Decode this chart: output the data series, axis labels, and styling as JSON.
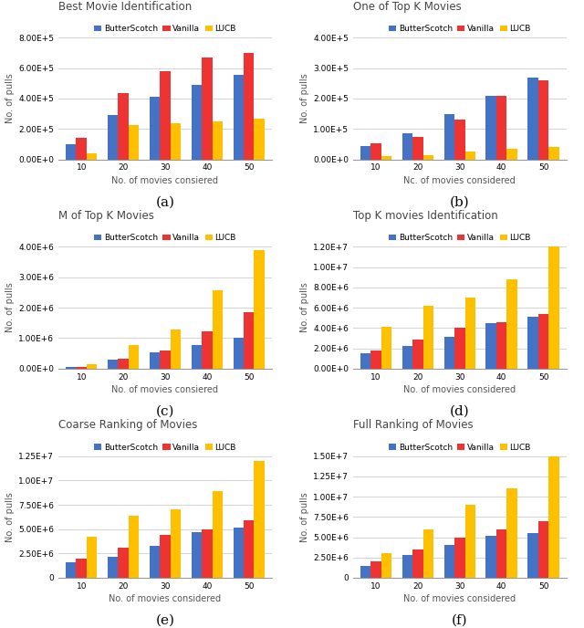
{
  "subplots": [
    {
      "title": "Best Movie Identification",
      "xlabel": "No. of movies consiered",
      "ylabel": "No. of pulls",
      "label": "(a)",
      "categories": [
        10,
        20,
        30,
        40,
        50
      ],
      "butterscotch": [
        100000,
        290000,
        410000,
        490000,
        555000
      ],
      "vanilla": [
        140000,
        435000,
        580000,
        670000,
        700000
      ],
      "lucb": [
        40000,
        225000,
        235000,
        250000,
        265000
      ],
      "ylim": [
        0,
        800000
      ],
      "yticks": [
        0,
        200000,
        400000,
        600000,
        800000
      ],
      "ytick_labels": [
        "0.00E+0",
        "2.00E+5",
        "4.00E+5",
        "6.00E+5",
        "8.00E+5"
      ]
    },
    {
      "title": "One of Top K Movies",
      "xlabel": "Nc. of movies considered",
      "ylabel": "No. of pulls",
      "label": "(b)",
      "categories": [
        10,
        20,
        30,
        40,
        50
      ],
      "butterscotch": [
        45000,
        85000,
        148000,
        210000,
        270000
      ],
      "vanilla": [
        52000,
        75000,
        130000,
        210000,
        260000
      ],
      "lucb": [
        10000,
        15000,
        25000,
        35000,
        42000
      ],
      "ylim": [
        0,
        400000
      ],
      "yticks": [
        0,
        100000,
        200000,
        300000,
        400000
      ],
      "ytick_labels": [
        "0.00E+0",
        "1.00E+5",
        "2.00E+5",
        "3.00E+5",
        "4.00E+5"
      ]
    },
    {
      "title": "M of Top K Movies",
      "xlabel": "No. of movies consiered",
      "ylabel": "No. of pulls",
      "label": "(c)",
      "categories": [
        10,
        20,
        30,
        40,
        50
      ],
      "butterscotch": [
        55000,
        285000,
        520000,
        770000,
        1020000
      ],
      "vanilla": [
        65000,
        330000,
        590000,
        1230000,
        1840000
      ],
      "lucb": [
        145000,
        770000,
        1280000,
        2580000,
        3900000
      ],
      "ylim": [
        0,
        4000000
      ],
      "yticks": [
        0,
        1000000,
        2000000,
        3000000,
        4000000
      ],
      "ytick_labels": [
        "0.00E+0",
        "1.00E+6",
        "2.00E+6",
        "3.00E+6",
        "4.00E+6"
      ]
    },
    {
      "title": "Top K movies Identification",
      "xlabel": "No. of movies considered",
      "ylabel": "No. of pulls",
      "label": "(d)",
      "categories": [
        10,
        20,
        30,
        40,
        50
      ],
      "butterscotch": [
        1500000,
        2200000,
        3100000,
        4500000,
        5100000
      ],
      "vanilla": [
        1800000,
        2900000,
        4000000,
        4600000,
        5400000
      ],
      "lucb": [
        4100000,
        6200000,
        7000000,
        8800000,
        12000000
      ],
      "ylim": [
        0,
        12000000
      ],
      "yticks": [
        0,
        2000000,
        4000000,
        6000000,
        8000000,
        10000000,
        12000000
      ],
      "ytick_labels": [
        "0.00E+0",
        "2.00E+6",
        "4.00E+6",
        "6.00E+6",
        "8.00E+6",
        "1.00E+7",
        "1.20E+7"
      ]
    },
    {
      "title": "Coarse Ranking of Movies",
      "xlabel": "No. of movies considered",
      "ylabel": "No. of pulls",
      "label": "(e)",
      "categories": [
        10,
        20,
        30,
        40,
        50
      ],
      "butterscotch": [
        1600000,
        2200000,
        3300000,
        4700000,
        5200000
      ],
      "vanilla": [
        2000000,
        3100000,
        4400000,
        5000000,
        5900000
      ],
      "lucb": [
        4200000,
        6400000,
        7000000,
        8900000,
        12000000
      ],
      "ylim": [
        0,
        12500000
      ],
      "yticks": [
        0,
        2500000,
        5000000,
        7500000,
        10000000,
        12500000
      ],
      "ytick_labels": [
        "0",
        "2.50E+6",
        "5.00E+6",
        "7.50E+6",
        "1.00E+7",
        "1.25E+7"
      ]
    },
    {
      "title": "Full Ranking of Movies",
      "xlabel": "No. of movies considered",
      "ylabel": "No. of pulls",
      "label": "(f)",
      "categories": [
        10,
        20,
        30,
        40,
        50
      ],
      "butterscotch": [
        1500000,
        2800000,
        4000000,
        5200000,
        5500000
      ],
      "vanilla": [
        2000000,
        3500000,
        5000000,
        6000000,
        7000000
      ],
      "lucb": [
        3000000,
        6000000,
        9000000,
        11000000,
        15000000
      ],
      "ylim": [
        0,
        15000000
      ],
      "yticks": [
        0,
        2500000,
        5000000,
        7500000,
        10000000,
        12500000,
        15000000
      ],
      "ytick_labels": [
        "0",
        "2.50E+6",
        "5.00E+6",
        "7.50E+6",
        "1.00E+7",
        "1.25E+7",
        "1.50E+7"
      ]
    }
  ],
  "colors": {
    "butterscotch": "#4472C4",
    "vanilla": "#EE3333",
    "lucb": "#FFC000"
  },
  "bar_width": 0.25,
  "legend_labels": [
    "ButterScotch",
    "Vanilla",
    "LUCB"
  ],
  "background": "#FFFFFF",
  "grid_color": "#CCCCCC",
  "title_fontsize": 8.5,
  "label_fontsize": 7,
  "tick_fontsize": 6.5,
  "legend_fontsize": 6.5,
  "sublabel_fontsize": 11
}
